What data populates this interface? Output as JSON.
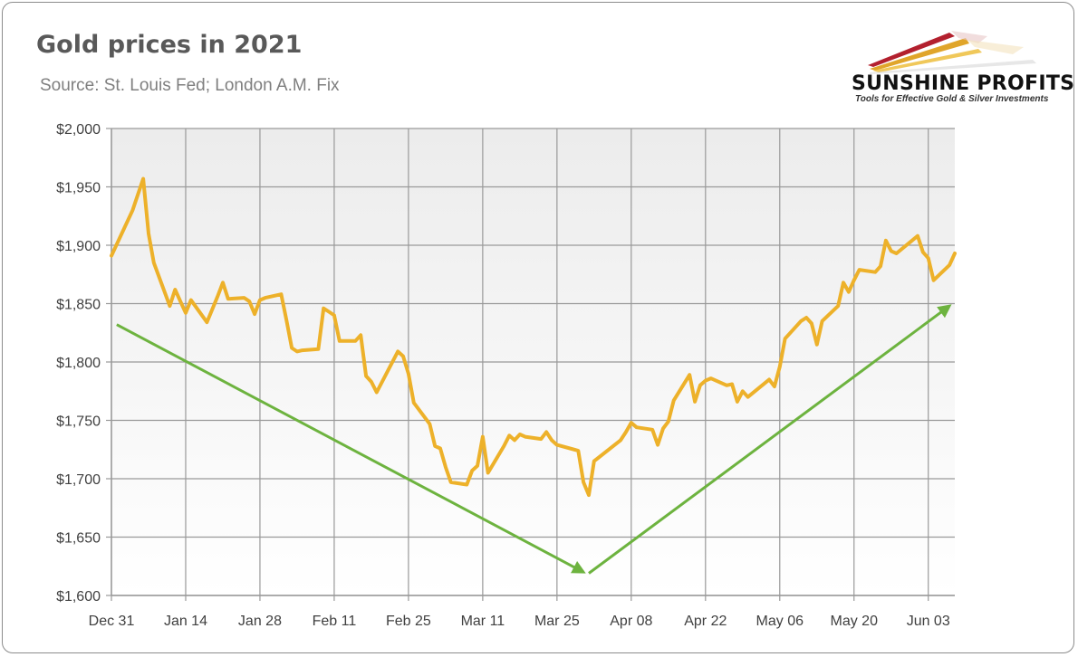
{
  "header": {
    "title": "Gold prices in 2021",
    "subtitle": "Source: St. Louis Fed; London A.M. Fix"
  },
  "logo": {
    "name": "SUNSHINE PROFITS",
    "tagline": "Tools for Effective Gold & Silver Investments"
  },
  "colors": {
    "series": "#EDB12A",
    "trend": "#6DB33F",
    "grid": "#999999",
    "plot_top": "#ECECEC",
    "plot_bottom": "#FFFFFF"
  },
  "chart_data": {
    "type": "line",
    "title": "Gold prices in 2021",
    "subtitle": "Source: St. Louis Fed; London A.M. Fix",
    "xlabel": "",
    "ylabel": "",
    "x_range": [
      "2020-12-31",
      "2021-06-08"
    ],
    "ylim": [
      1600,
      2000
    ],
    "y_ticks": [
      1600,
      1650,
      1700,
      1750,
      1800,
      1850,
      1900,
      1950,
      2000
    ],
    "y_tick_labels": [
      "$1,600",
      "$1,650",
      "$1,700",
      "$1,750",
      "$1,800",
      "$1,850",
      "$1,900",
      "$1,950",
      "$2,000"
    ],
    "x_ticks": [
      "2020-12-31",
      "2021-01-14",
      "2021-01-28",
      "2021-02-11",
      "2021-02-25",
      "2021-03-11",
      "2021-03-25",
      "2021-04-08",
      "2021-04-22",
      "2021-05-06",
      "2021-05-20",
      "2021-06-03"
    ],
    "x_tick_labels": [
      "Dec 31",
      "Jan 14",
      "Jan 28",
      "Feb 11",
      "Feb 25",
      "Mar 11",
      "Mar 25",
      "Apr 08",
      "Apr 22",
      "May 06",
      "May 20",
      "Jun 03"
    ],
    "grid": true,
    "legend": "none",
    "series": [
      {
        "points": [
          [
            "2020-12-31",
            1891
          ],
          [
            "2021-01-04",
            1930
          ],
          [
            "2021-01-06",
            1957
          ],
          [
            "2021-01-07",
            1910
          ],
          [
            "2021-01-08",
            1885
          ],
          [
            "2021-01-11",
            1848
          ],
          [
            "2021-01-12",
            1862
          ],
          [
            "2021-01-13",
            1852
          ],
          [
            "2021-01-14",
            1842
          ],
          [
            "2021-01-15",
            1853
          ],
          [
            "2021-01-18",
            1834
          ],
          [
            "2021-01-19",
            1845
          ],
          [
            "2021-01-20",
            1856
          ],
          [
            "2021-01-21",
            1868
          ],
          [
            "2021-01-22",
            1854
          ],
          [
            "2021-01-25",
            1855
          ],
          [
            "2021-01-26",
            1852
          ],
          [
            "2021-01-27",
            1841
          ],
          [
            "2021-01-28",
            1853
          ],
          [
            "2021-01-29",
            1855
          ],
          [
            "2021-02-01",
            1858
          ],
          [
            "2021-02-02",
            1836
          ],
          [
            "2021-02-03",
            1812
          ],
          [
            "2021-02-04",
            1809
          ],
          [
            "2021-02-05",
            1810
          ],
          [
            "2021-02-08",
            1811
          ],
          [
            "2021-02-09",
            1846
          ],
          [
            "2021-02-10",
            1843
          ],
          [
            "2021-02-11",
            1840
          ],
          [
            "2021-02-12",
            1818
          ],
          [
            "2021-02-15",
            1818
          ],
          [
            "2021-02-16",
            1823
          ],
          [
            "2021-02-17",
            1788
          ],
          [
            "2021-02-18",
            1783
          ],
          [
            "2021-02-19",
            1774
          ],
          [
            "2021-02-23",
            1809
          ],
          [
            "2021-02-24",
            1805
          ],
          [
            "2021-02-25",
            1790
          ],
          [
            "2021-02-26",
            1765
          ],
          [
            "2021-03-01",
            1747
          ],
          [
            "2021-03-02",
            1728
          ],
          [
            "2021-03-03",
            1726
          ],
          [
            "2021-03-04",
            1710
          ],
          [
            "2021-03-05",
            1697
          ],
          [
            "2021-03-08",
            1695
          ],
          [
            "2021-03-09",
            1707
          ],
          [
            "2021-03-10",
            1711
          ],
          [
            "2021-03-11",
            1736
          ],
          [
            "2021-03-12",
            1705
          ],
          [
            "2021-03-15",
            1728
          ],
          [
            "2021-03-16",
            1737
          ],
          [
            "2021-03-17",
            1733
          ],
          [
            "2021-03-18",
            1738
          ],
          [
            "2021-03-19",
            1736
          ],
          [
            "2021-03-22",
            1734
          ],
          [
            "2021-03-23",
            1740
          ],
          [
            "2021-03-24",
            1733
          ],
          [
            "2021-03-25",
            1729
          ],
          [
            "2021-03-29",
            1724
          ],
          [
            "2021-03-30",
            1697
          ],
          [
            "2021-03-31",
            1686
          ],
          [
            "2021-04-01",
            1715
          ],
          [
            "2021-04-06",
            1733
          ],
          [
            "2021-04-07",
            1740
          ],
          [
            "2021-04-08",
            1748
          ],
          [
            "2021-04-09",
            1744
          ],
          [
            "2021-04-12",
            1742
          ],
          [
            "2021-04-13",
            1729
          ],
          [
            "2021-04-14",
            1743
          ],
          [
            "2021-04-15",
            1749
          ],
          [
            "2021-04-16",
            1767
          ],
          [
            "2021-04-19",
            1789
          ],
          [
            "2021-04-20",
            1766
          ],
          [
            "2021-04-21",
            1780
          ],
          [
            "2021-04-22",
            1784
          ],
          [
            "2021-04-23",
            1786
          ],
          [
            "2021-04-26",
            1780
          ],
          [
            "2021-04-27",
            1781
          ],
          [
            "2021-04-28",
            1766
          ],
          [
            "2021-04-29",
            1775
          ],
          [
            "2021-04-30",
            1770
          ],
          [
            "2021-05-04",
            1785
          ],
          [
            "2021-05-05",
            1779
          ],
          [
            "2021-05-06",
            1796
          ],
          [
            "2021-05-07",
            1820
          ],
          [
            "2021-05-10",
            1835
          ],
          [
            "2021-05-11",
            1838
          ],
          [
            "2021-05-12",
            1833
          ],
          [
            "2021-05-13",
            1815
          ],
          [
            "2021-05-14",
            1835
          ],
          [
            "2021-05-17",
            1848
          ],
          [
            "2021-05-18",
            1868
          ],
          [
            "2021-05-19",
            1860
          ],
          [
            "2021-05-20",
            1870
          ],
          [
            "2021-05-21",
            1879
          ],
          [
            "2021-05-24",
            1877
          ],
          [
            "2021-05-25",
            1882
          ],
          [
            "2021-05-26",
            1904
          ],
          [
            "2021-05-27",
            1895
          ],
          [
            "2021-05-28",
            1893
          ],
          [
            "2021-06-01",
            1908
          ],
          [
            "2021-06-02",
            1894
          ],
          [
            "2021-06-03",
            1889
          ],
          [
            "2021-06-04",
            1870
          ],
          [
            "2021-06-07",
            1883
          ],
          [
            "2021-06-08",
            1893
          ]
        ]
      }
    ],
    "annotations": [
      {
        "type": "arrow",
        "from": [
          "2021-01-01",
          1832
        ],
        "to": [
          "2021-03-30",
          1620
        ]
      },
      {
        "type": "arrow",
        "from": [
          "2021-03-31",
          1619
        ],
        "to": [
          "2021-06-07",
          1848
        ]
      }
    ]
  }
}
